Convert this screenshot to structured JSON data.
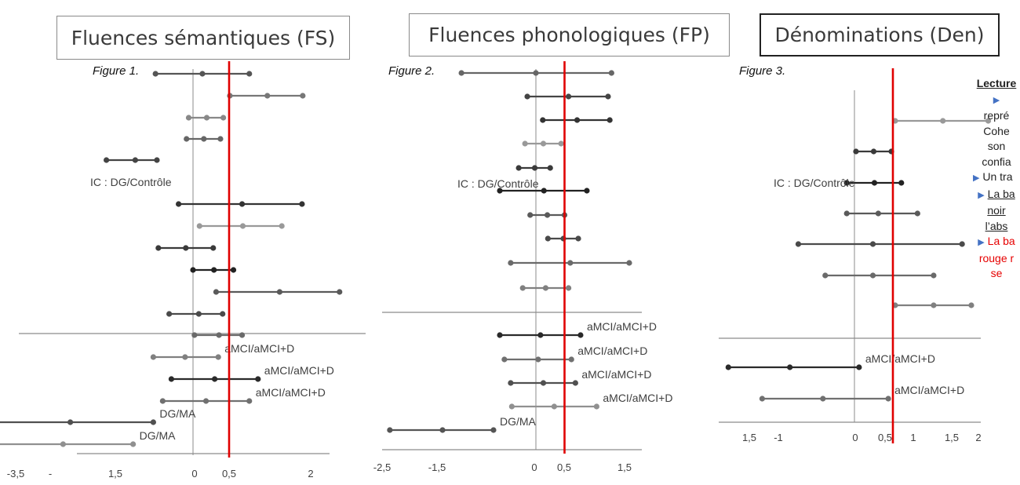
{
  "titles": {
    "fs": "Fluences sémantiques (FS)",
    "fp": "Fluences phonologiques (FP)",
    "den": "Dénominations (Den)"
  },
  "figures": {
    "fs": "Figure 1.",
    "fp": "Figure 2.",
    "den": "Figure 3."
  },
  "legend": {
    "l1": "Lecture",
    "l2": "repré",
    "l3": "Cohe",
    "l4": "son",
    "l5": "confia",
    "l6": "Un tra",
    "l7": "La ba",
    "l8": "noir",
    "l9": "l’abs",
    "l10": "La ba",
    "l11": "rouge r",
    "l12": "se"
  },
  "colors": {
    "threshold": "#e00000",
    "legend_arrow": "#4472c4",
    "axis": "#a6a6a6"
  },
  "chart_data": [
    {
      "type": "forest",
      "id": "fs",
      "title": "Fluences sémantiques (FS)",
      "figure_label": "Figure 1.",
      "x_tick_labels": [
        "-3,5",
        "-",
        "1,5",
        "0",
        "0,5",
        "2"
      ],
      "threshold": 0.5,
      "group_labels": [
        "IC : DG/Contrôle"
      ],
      "rows": [
        {
          "lo": -0.52,
          "est": 0.13,
          "hi": 0.78,
          "label": ""
        },
        {
          "lo": 0.51,
          "est": 1.03,
          "hi": 1.52,
          "label": ""
        },
        {
          "lo": -0.06,
          "est": 0.19,
          "hi": 0.42,
          "label": ""
        },
        {
          "lo": -0.09,
          "est": 0.15,
          "hi": 0.38,
          "label": ""
        },
        {
          "lo": -1.2,
          "est": -0.8,
          "hi": -0.5,
          "label": "IC : DG/Contrôle"
        },
        {
          "lo": -0.2,
          "est": 0.68,
          "hi": 1.51,
          "label": ""
        },
        {
          "lo": 0.09,
          "est": 0.69,
          "hi": 1.23,
          "label": ""
        },
        {
          "lo": -0.48,
          "est": -0.1,
          "hi": 0.28,
          "label": ""
        },
        {
          "lo": 0.0,
          "est": 0.29,
          "hi": 0.56,
          "label": ""
        },
        {
          "lo": 0.32,
          "est": 1.2,
          "hi": 2.03,
          "label": ""
        },
        {
          "lo": -0.33,
          "est": 0.08,
          "hi": 0.41,
          "label": ""
        },
        {
          "lo": 0.02,
          "est": 0.36,
          "hi": 0.68,
          "label": ""
        },
        {
          "lo": -0.55,
          "est": -0.11,
          "hi": 0.35,
          "label": "aMCI/aMCI+D"
        },
        {
          "lo": -0.3,
          "est": 0.3,
          "hi": 0.9,
          "label": "aMCI/aMCI+D"
        },
        {
          "lo": -0.42,
          "est": 0.18,
          "hi": 0.78,
          "label": "aMCI/aMCI+D"
        },
        {
          "lo": -2.8,
          "est": -1.7,
          "hi": -0.55,
          "label": "DG/MA"
        },
        {
          "lo": -2.75,
          "est": -1.8,
          "hi": -0.83,
          "label": "DG/MA"
        }
      ]
    },
    {
      "type": "forest",
      "id": "fp",
      "title": "Fluences phonologiques (FP)",
      "figure_label": "Figure 2.",
      "x_tick_labels": [
        "-2,5",
        "-1,5",
        "0",
        "0,5",
        "1,5"
      ],
      "threshold": 0.5,
      "group_labels": [
        "IC : DG/Contrôle"
      ],
      "rows": [
        {
          "lo": -1.3,
          "est": 0.0,
          "hi": 1.32,
          "label": ""
        },
        {
          "lo": -0.15,
          "est": 0.57,
          "hi": 1.26,
          "label": ""
        },
        {
          "lo": 0.12,
          "est": 0.72,
          "hi": 1.29,
          "label": ""
        },
        {
          "lo": -0.19,
          "est": 0.13,
          "hi": 0.44,
          "label": ""
        },
        {
          "lo": -0.3,
          "est": -0.02,
          "hi": 0.25,
          "label": "IC : DG/Contrôle"
        },
        {
          "lo": -0.63,
          "est": 0.14,
          "hi": 0.89,
          "label": ""
        },
        {
          "lo": -0.1,
          "est": 0.2,
          "hi": 0.5,
          "label": ""
        },
        {
          "lo": 0.21,
          "est": 0.48,
          "hi": 0.74,
          "label": ""
        },
        {
          "lo": -0.44,
          "est": 0.6,
          "hi": 1.63,
          "label": ""
        },
        {
          "lo": -0.23,
          "est": 0.17,
          "hi": 0.57,
          "label": ""
        },
        {
          "lo": -0.63,
          "est": 0.08,
          "hi": 0.78,
          "label": "aMCI/aMCI+D"
        },
        {
          "lo": -0.55,
          "est": 0.04,
          "hi": 0.62,
          "label": "aMCI/aMCI+D"
        },
        {
          "lo": -0.44,
          "est": 0.13,
          "hi": 0.69,
          "label": "aMCI/aMCI+D"
        },
        {
          "lo": -0.42,
          "est": 0.32,
          "hi": 1.06,
          "label": "aMCI/aMCI+D"
        },
        {
          "lo": -2.55,
          "est": -1.63,
          "hi": -0.74,
          "label": "DG/MA"
        }
      ]
    },
    {
      "type": "forest",
      "id": "den",
      "title": "Dénominations (Den)",
      "figure_label": "Figure 3.",
      "x_tick_labels": [
        "1,5",
        "-1",
        "0",
        "0,5",
        "1",
        "1,5",
        "2"
      ],
      "threshold": 0.5,
      "group_labels": [
        "IC : DG/Contrôle"
      ],
      "rows": [
        {
          "lo": 0.53,
          "est": 1.15,
          "hi": 1.74,
          "label": ""
        },
        {
          "lo": 0.02,
          "est": 0.25,
          "hi": 0.48,
          "label": "IC : DG/Contrôle"
        },
        {
          "lo": -0.1,
          "est": 0.26,
          "hi": 0.61,
          "label": ""
        },
        {
          "lo": -0.1,
          "est": 0.31,
          "hi": 0.82,
          "label": ""
        },
        {
          "lo": -0.73,
          "est": 0.24,
          "hi": 1.4,
          "label": ""
        },
        {
          "lo": -0.38,
          "est": 0.24,
          "hi": 1.03,
          "label": ""
        },
        {
          "lo": 0.53,
          "est": 1.03,
          "hi": 1.52,
          "label": ""
        },
        {
          "lo": -1.64,
          "est": -0.84,
          "hi": 0.06,
          "label": "aMCI/aMCI+D"
        },
        {
          "lo": -1.2,
          "est": -0.41,
          "hi": 0.44,
          "label": "aMCI/aMCI+D"
        }
      ]
    }
  ]
}
